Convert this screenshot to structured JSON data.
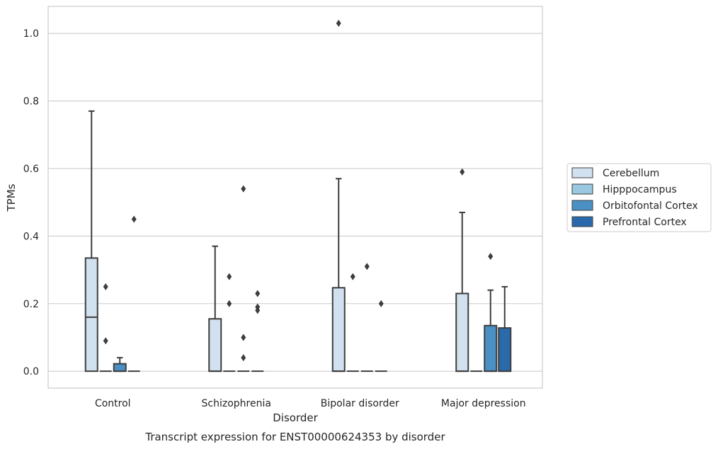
{
  "chart_data": {
    "type": "box",
    "title": "Transcript expression for ENST00000624353 by disorder",
    "xlabel": "Disorder",
    "ylabel": "TPMs",
    "ylim": [
      -0.05,
      1.08
    ],
    "yticks": [
      "0.0",
      "0.2",
      "0.4",
      "0.6",
      "0.8",
      "1.0"
    ],
    "grid": true,
    "legend_position": "right",
    "categories": [
      "Control",
      "Schizophrenia",
      "Bipolar disorder",
      "Major depression"
    ],
    "series": [
      {
        "name": "Cerebellum",
        "color": "#d2e1f0",
        "boxes": [
          {
            "q1": 0,
            "median": 0.16,
            "q3": 0.335,
            "wlow": 0,
            "whigh": 0.77,
            "outliers": []
          },
          {
            "q1": 0,
            "median": 0,
            "q3": 0.155,
            "wlow": 0,
            "whigh": 0.37,
            "outliers": []
          },
          {
            "q1": 0,
            "median": 0,
            "q3": 0.247,
            "wlow": 0,
            "whigh": 0.57,
            "outliers": [
              1.03
            ]
          },
          {
            "q1": 0,
            "median": 0,
            "q3": 0.23,
            "wlow": 0,
            "whigh": 0.47,
            "outliers": [
              0.59
            ]
          }
        ]
      },
      {
        "name": "Hipppocampus",
        "color": "#9ac8e0",
        "boxes": [
          {
            "q1": 0,
            "median": 0,
            "q3": 0,
            "wlow": 0,
            "whigh": 0,
            "outliers": [
              0.25,
              0.09
            ]
          },
          {
            "q1": 0,
            "median": 0,
            "q3": 0,
            "wlow": 0,
            "whigh": 0,
            "outliers": [
              0.28,
              0.2
            ]
          },
          {
            "q1": 0,
            "median": 0,
            "q3": 0,
            "wlow": 0,
            "whigh": 0,
            "outliers": [
              0.28
            ]
          },
          {
            "q1": 0,
            "median": 0,
            "q3": 0,
            "wlow": 0,
            "whigh": 0,
            "outliers": []
          }
        ]
      },
      {
        "name": "Orbitofontal Cortex",
        "color": "#4a90c4",
        "boxes": [
          {
            "q1": 0,
            "median": 0,
            "q3": 0.022,
            "wlow": 0,
            "whigh": 0.04,
            "outliers": []
          },
          {
            "q1": 0,
            "median": 0,
            "q3": 0,
            "wlow": 0,
            "whigh": 0,
            "outliers": [
              0.54,
              0.1,
              0.04
            ]
          },
          {
            "q1": 0,
            "median": 0,
            "q3": 0,
            "wlow": 0,
            "whigh": 0,
            "outliers": [
              0.31
            ]
          },
          {
            "q1": 0,
            "median": 0,
            "q3": 0.135,
            "wlow": 0,
            "whigh": 0.24,
            "outliers": [
              0.34
            ]
          }
        ]
      },
      {
        "name": "Prefrontal Cortex",
        "color": "#2a6aac",
        "boxes": [
          {
            "q1": 0,
            "median": 0,
            "q3": 0,
            "wlow": 0,
            "whigh": 0,
            "outliers": [
              0.45
            ]
          },
          {
            "q1": 0,
            "median": 0,
            "q3": 0,
            "wlow": 0,
            "whigh": 0,
            "outliers": [
              0.23,
              0.19,
              0.18
            ]
          },
          {
            "q1": 0,
            "median": 0,
            "q3": 0,
            "wlow": 0,
            "whigh": 0,
            "outliers": [
              0.2
            ]
          },
          {
            "q1": 0,
            "median": 0,
            "q3": 0.128,
            "wlow": 0,
            "whigh": 0.25,
            "outliers": []
          }
        ]
      }
    ]
  }
}
